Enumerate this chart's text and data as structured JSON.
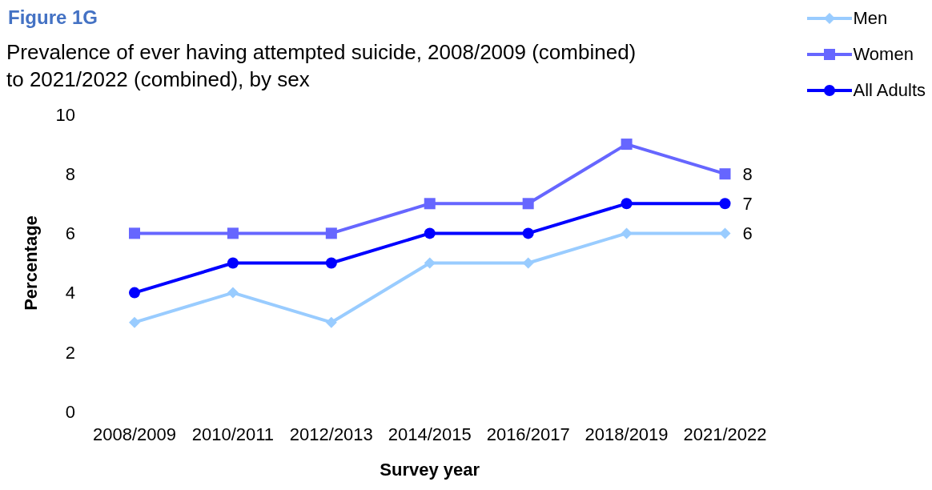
{
  "chart_data": {
    "type": "line",
    "title": "Figure 1G",
    "subtitle": "Prevalence of ever having attempted suicide, 2008/2009 (combined) to 2021/2022 (combined), by sex",
    "xlabel": "Survey year",
    "ylabel": "Percentage",
    "categories": [
      "2008/2009",
      "2010/2011",
      "2012/2013",
      "2014/2015",
      "2016/2017",
      "2018/2019",
      "2021/2022"
    ],
    "series": [
      {
        "name": "Men",
        "color": "#99ccff",
        "marker": "diamond",
        "values": [
          3,
          4,
          3,
          5,
          5,
          6,
          6
        ],
        "value_labels": [
          null,
          null,
          null,
          null,
          null,
          null,
          "6"
        ]
      },
      {
        "name": "Women",
        "color": "#6666ff",
        "marker": "square",
        "values": [
          6,
          6,
          6,
          7,
          7,
          9,
          8
        ],
        "value_labels": [
          null,
          null,
          null,
          null,
          null,
          null,
          "8"
        ]
      },
      {
        "name": "All Adults",
        "color": "#0000ff",
        "marker": "circle",
        "values": [
          4,
          5,
          5,
          6,
          6,
          7,
          7
        ],
        "value_labels": [
          null,
          null,
          null,
          null,
          null,
          null,
          "7"
        ]
      }
    ],
    "ylim": [
      0,
      10
    ],
    "yticks": [
      0,
      2,
      4,
      6,
      8,
      10
    ],
    "grid": false,
    "legend": "top right",
    "line_style": "solid"
  }
}
